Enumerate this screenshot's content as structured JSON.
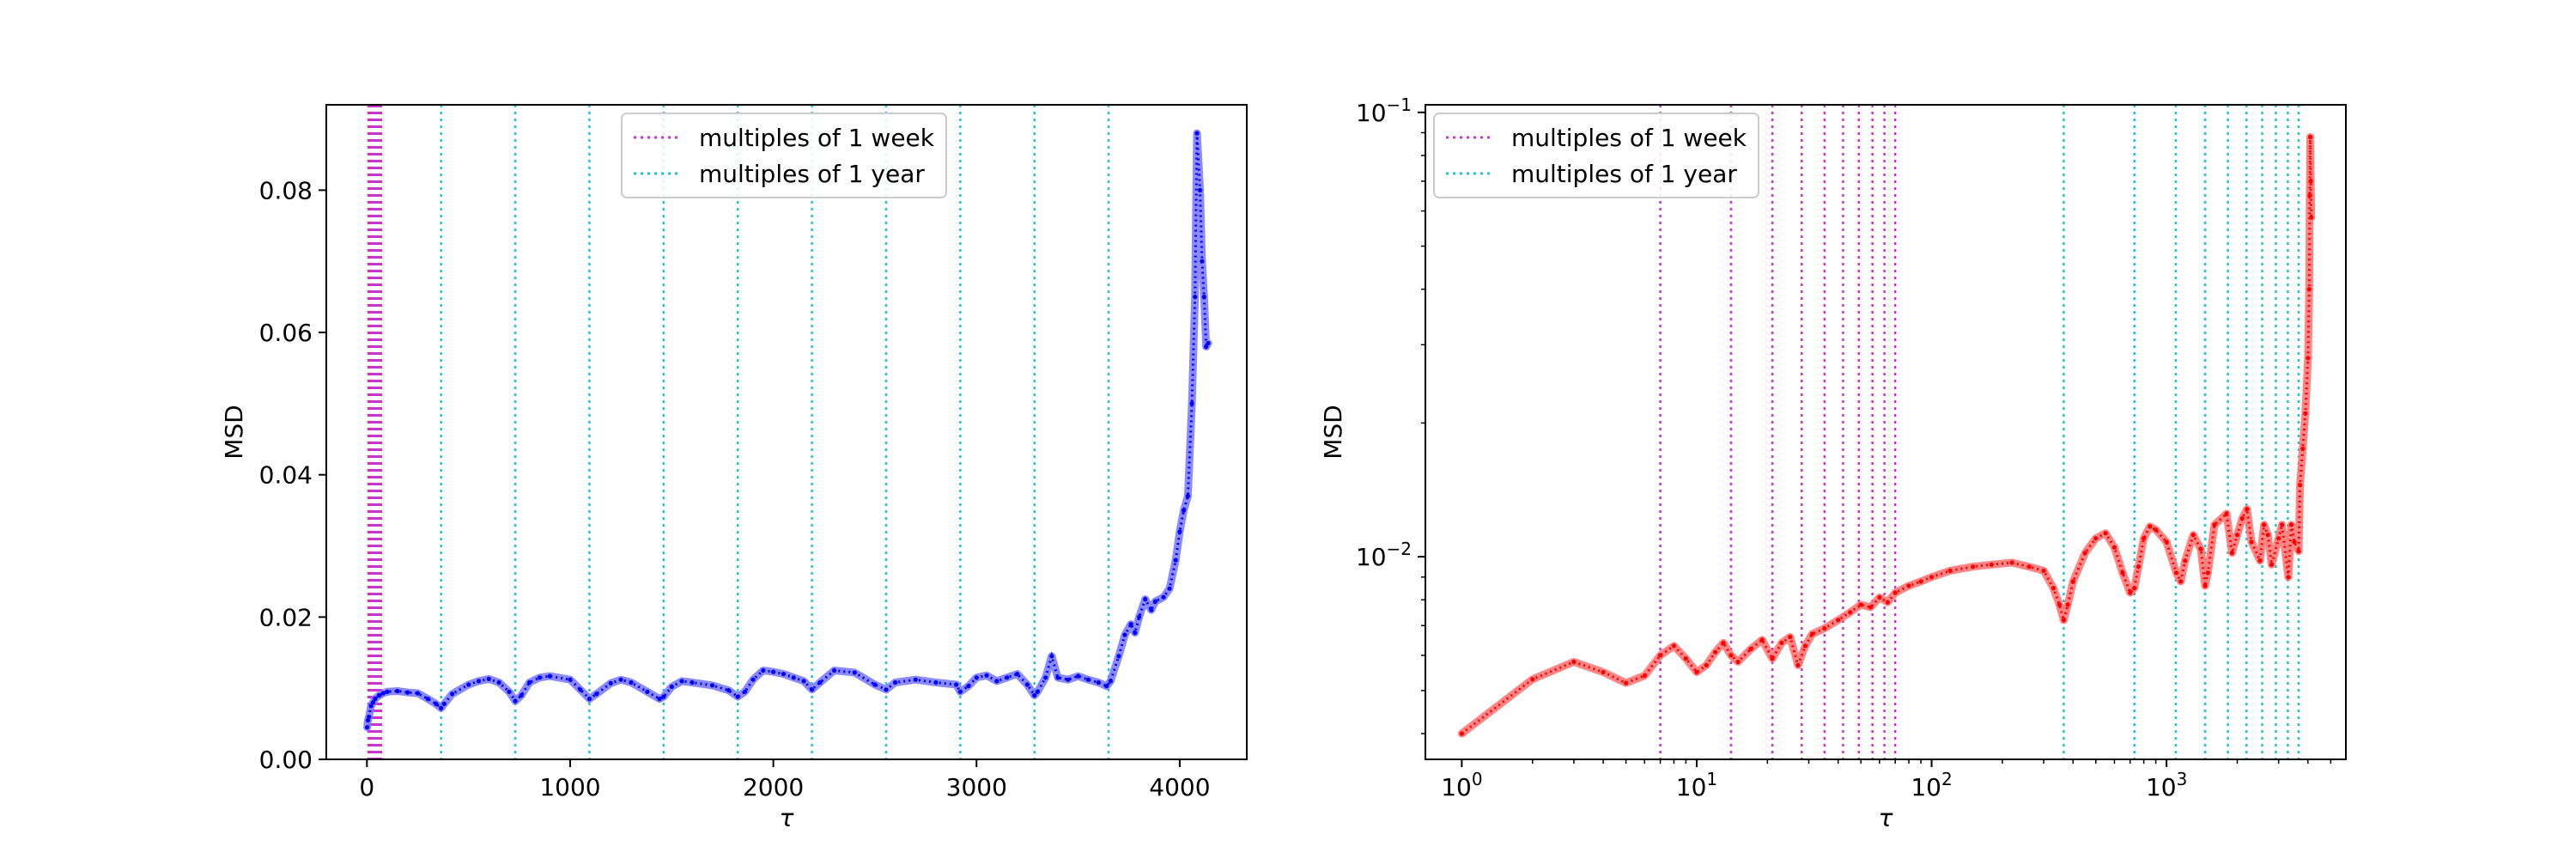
{
  "figure": {
    "background": "#ffffff"
  },
  "chart_data": [
    {
      "type": "line",
      "scale": "linear",
      "title": "",
      "xlabel": "τ",
      "ylabel": "MSD",
      "xlim": [
        -200,
        4330
      ],
      "ylim": [
        0.0,
        0.092
      ],
      "xticks": [
        0,
        1000,
        2000,
        3000,
        4000
      ],
      "xtick_labels": [
        "0",
        "1000",
        "2000",
        "3000",
        "4000"
      ],
      "yticks": [
        0.0,
        0.02,
        0.04,
        0.06,
        0.08
      ],
      "ytick_labels": [
        "0.00",
        "0.02",
        "0.04",
        "0.06",
        "0.08"
      ],
      "legend": {
        "position": "top-center",
        "entries": [
          {
            "label": "multiples of 1 week",
            "color": "#cc33cc",
            "style": "dotted"
          },
          {
            "label": "multiples of 1 year",
            "color": "#22c4d4",
            "style": "dotted"
          }
        ]
      },
      "series": [
        {
          "name": "MSD",
          "color": "#0000ff",
          "band_color": "#7777ff",
          "x": [
            1,
            5,
            10,
            20,
            30,
            40,
            60,
            80,
            100,
            150,
            200,
            250,
            300,
            340,
            365,
            380,
            420,
            500,
            550,
            600,
            650,
            700,
            730,
            760,
            800,
            850,
            900,
            1000,
            1050,
            1095,
            1130,
            1200,
            1250,
            1300,
            1380,
            1440,
            1460,
            1500,
            1550,
            1600,
            1700,
            1780,
            1825,
            1860,
            1900,
            1950,
            2000,
            2050,
            2100,
            2150,
            2190,
            2230,
            2300,
            2400,
            2500,
            2555,
            2600,
            2700,
            2800,
            2900,
            2920,
            2960,
            3000,
            3050,
            3100,
            3150,
            3200,
            3250,
            3285,
            3300,
            3340,
            3370,
            3400,
            3450,
            3500,
            3550,
            3600,
            3640,
            3660,
            3700,
            3730,
            3760,
            3780,
            3800,
            3830,
            3860,
            3880,
            3920,
            3950,
            3980,
            4000,
            4020,
            4040,
            4060,
            4075,
            4085,
            4100,
            4110,
            4120,
            4130,
            4140
          ],
          "y": [
            0.0045,
            0.0055,
            0.006,
            0.0075,
            0.008,
            0.0085,
            0.009,
            0.0093,
            0.0095,
            0.0096,
            0.0094,
            0.0093,
            0.0085,
            0.0078,
            0.0072,
            0.0078,
            0.0092,
            0.0105,
            0.011,
            0.0113,
            0.0108,
            0.0095,
            0.0082,
            0.009,
            0.0108,
            0.0115,
            0.0117,
            0.0112,
            0.0098,
            0.0085,
            0.0092,
            0.0107,
            0.0112,
            0.0108,
            0.0095,
            0.0085,
            0.0088,
            0.0102,
            0.011,
            0.0108,
            0.0104,
            0.0097,
            0.0088,
            0.0095,
            0.0112,
            0.0125,
            0.0123,
            0.012,
            0.0115,
            0.011,
            0.0098,
            0.0108,
            0.0125,
            0.0122,
            0.0105,
            0.0098,
            0.0108,
            0.0112,
            0.0108,
            0.0105,
            0.0095,
            0.0103,
            0.0115,
            0.0118,
            0.011,
            0.0115,
            0.012,
            0.0105,
            0.009,
            0.0095,
            0.0115,
            0.0145,
            0.0115,
            0.0112,
            0.0117,
            0.0112,
            0.0108,
            0.0103,
            0.011,
            0.0145,
            0.0175,
            0.019,
            0.0178,
            0.02,
            0.0225,
            0.021,
            0.0222,
            0.0228,
            0.024,
            0.028,
            0.032,
            0.035,
            0.037,
            0.05,
            0.065,
            0.088,
            0.08,
            0.07,
            0.065,
            0.058,
            0.0585
          ]
        }
      ],
      "vlines": [
        {
          "group": "week",
          "x_start": 7,
          "x_step": 7,
          "x_end": 70
        },
        {
          "group": "year",
          "x": [
            365,
            730,
            1095,
            1460,
            1825,
            2190,
            2555,
            2920,
            3285,
            3650
          ]
        }
      ]
    },
    {
      "type": "line",
      "scale": "log-log",
      "title": "",
      "xlabel": "τ",
      "ylabel": "MSD",
      "xlim": [
        0.7,
        5800
      ],
      "ylim": [
        0.0035,
        0.104
      ],
      "xticks": [
        1,
        10,
        100,
        1000
      ],
      "xtick_base": "10",
      "xtick_exponents": [
        "0",
        "1",
        "2",
        "3"
      ],
      "yticks": [
        0.01,
        0.1
      ],
      "ytick_base": "10",
      "ytick_exponents": [
        "−2",
        "−1"
      ],
      "legend": {
        "position": "top-left",
        "entries": [
          {
            "label": "multiples of 1 week",
            "color": "#cc33cc",
            "style": "dotted"
          },
          {
            "label": "multiples of 1 year",
            "color": "#22c4d4",
            "style": "dotted"
          }
        ]
      },
      "series": [
        {
          "name": "MSD",
          "color": "#ff0000",
          "band_color": "#ff7070",
          "x": [
            1,
            2,
            3,
            4,
            5,
            6,
            7,
            8,
            9,
            10,
            11,
            12,
            13,
            14,
            15,
            17,
            19,
            21,
            23,
            25,
            27,
            29,
            31,
            35,
            40,
            45,
            50,
            55,
            60,
            65,
            70,
            80,
            90,
            100,
            120,
            150,
            180,
            220,
            260,
            300,
            330,
            350,
            365,
            380,
            400,
            450,
            500,
            550,
            600,
            650,
            700,
            730,
            760,
            800,
            850,
            900,
            1000,
            1100,
            1150,
            1200,
            1300,
            1400,
            1460,
            1500,
            1600,
            1800,
            1900,
            2000,
            2100,
            2200,
            2300,
            2500,
            2600,
            2700,
            2800,
            3000,
            3100,
            3300,
            3400,
            3500,
            3650,
            3700,
            3800,
            3900,
            4000,
            4050,
            4070,
            4090,
            4110,
            4130
          ],
          "y": [
            0.004,
            0.0053,
            0.0058,
            0.0055,
            0.0052,
            0.0054,
            0.006,
            0.0063,
            0.0059,
            0.0055,
            0.0057,
            0.0061,
            0.0064,
            0.006,
            0.0058,
            0.0062,
            0.0065,
            0.0059,
            0.0064,
            0.0066,
            0.0057,
            0.0063,
            0.0067,
            0.0069,
            0.0072,
            0.0075,
            0.0078,
            0.0077,
            0.0081,
            0.0079,
            0.0083,
            0.0086,
            0.0088,
            0.009,
            0.0093,
            0.0095,
            0.0096,
            0.0097,
            0.0095,
            0.0093,
            0.0085,
            0.0078,
            0.0072,
            0.0078,
            0.0088,
            0.0102,
            0.011,
            0.0113,
            0.0105,
            0.0092,
            0.0083,
            0.0085,
            0.0095,
            0.011,
            0.0117,
            0.0115,
            0.0108,
            0.0092,
            0.0088,
            0.0098,
            0.0112,
            0.0104,
            0.0086,
            0.0092,
            0.0118,
            0.0125,
            0.0102,
            0.0112,
            0.0122,
            0.0128,
            0.0108,
            0.0098,
            0.0118,
            0.0112,
            0.0096,
            0.011,
            0.0118,
            0.009,
            0.0118,
            0.0108,
            0.0103,
            0.0145,
            0.0175,
            0.021,
            0.028,
            0.04,
            0.065,
            0.088,
            0.07,
            0.058
          ]
        }
      ],
      "vlines": [
        {
          "group": "week",
          "x_start": 7,
          "x_step": 7,
          "x_end": 70
        },
        {
          "group": "year",
          "x": [
            365,
            730,
            1095,
            1460,
            1825,
            2190,
            2555,
            2920,
            3285,
            3650
          ]
        }
      ]
    }
  ]
}
